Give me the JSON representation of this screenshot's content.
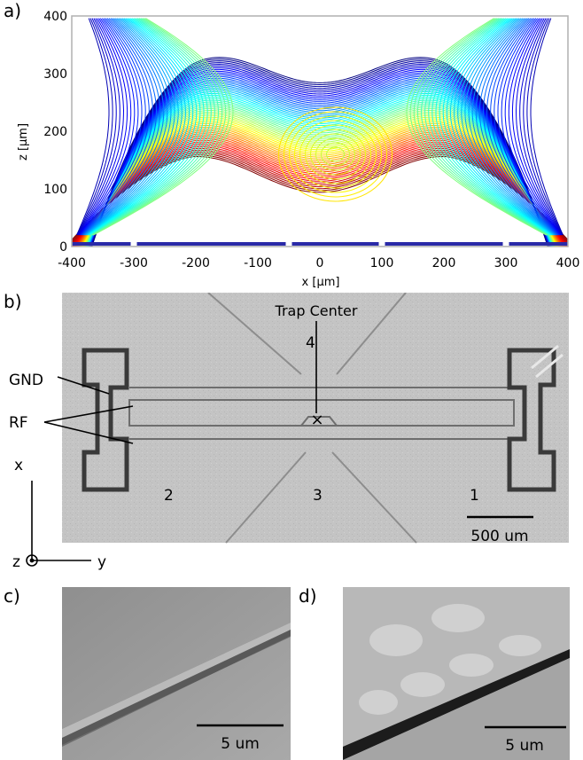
{
  "panels": {
    "a": {
      "label": "a)",
      "xlabel": "x [µm]",
      "ylabel": "z [µm]",
      "xticks": [
        "-400",
        "-300",
        "-200",
        "-100",
        "0",
        "100",
        "200",
        "300",
        "400"
      ],
      "yticks": [
        "0",
        "100",
        "200",
        "300",
        "400"
      ],
      "xlim": [
        -400,
        400
      ],
      "ylim": [
        0,
        400
      ]
    },
    "b": {
      "label": "b)",
      "annotations": {
        "trap_center": "Trap Center",
        "gnd": "GND",
        "rf": "RF",
        "n1": "1",
        "n2": "2",
        "n3": "3",
        "n4": "4",
        "marker": "×"
      },
      "scale_bar": "500 um",
      "axes": {
        "x": "x",
        "y": "y",
        "z": "z"
      }
    },
    "c": {
      "label": "c)",
      "scale_bar": "5 um"
    },
    "d": {
      "label": "d)",
      "scale_bar": "5 um"
    }
  },
  "chart_data": {
    "type": "contour",
    "xlabel": "x [µm]",
    "ylabel": "z [µm]",
    "xlim": [
      -400,
      400
    ],
    "ylim": [
      0,
      400
    ],
    "colormap": "jet",
    "electrode_segments_x": [
      [
        -400,
        -305
      ],
      [
        -295,
        -55
      ],
      [
        -45,
        95
      ],
      [
        105,
        295
      ],
      [
        305,
        400
      ]
    ],
    "features": {
      "potential_minimum": {
        "x": 25,
        "z": 160
      },
      "boundary_minimum": {
        "x": 0,
        "z": 90
      },
      "boundary_maxima": [
        {
          "x": -200,
          "z": 155
        },
        {
          "x": 200,
          "z": 150
        }
      ]
    }
  }
}
